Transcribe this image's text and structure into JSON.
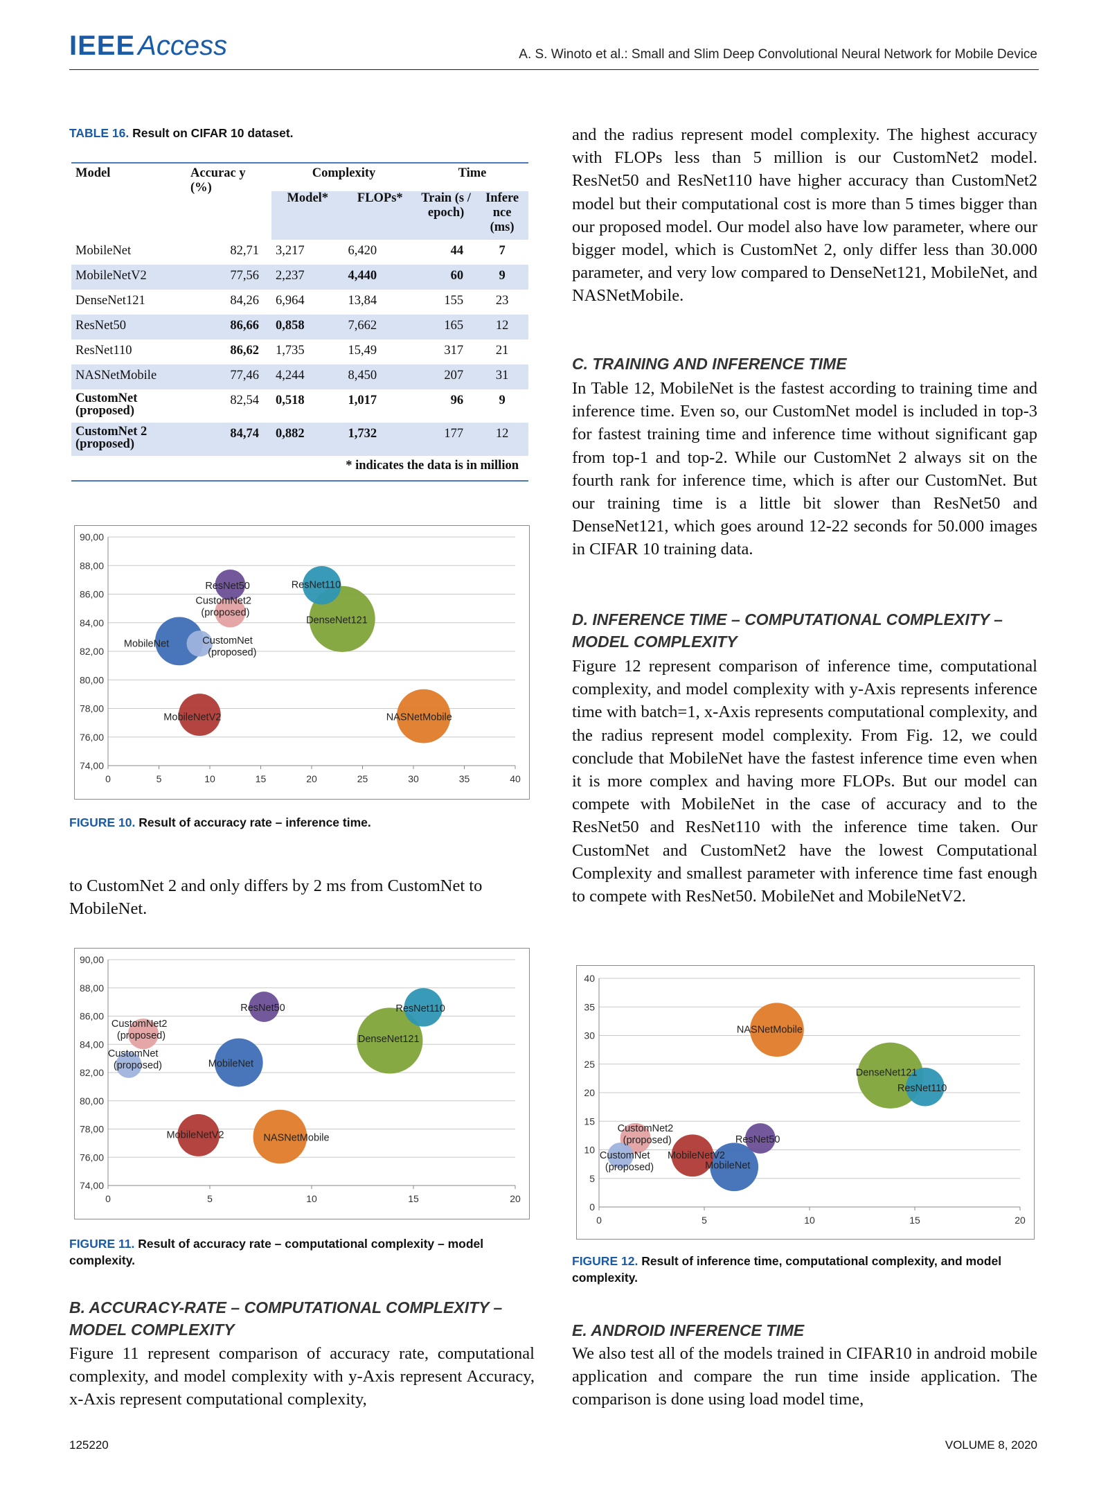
{
  "header": {
    "logo_ieee": "IEEE",
    "logo_access": "Access",
    "citation": "A. S. Winoto et al.: Small and Slim Deep Convolutional Neural Network for Mobile Device"
  },
  "table16": {
    "caption_label": "TABLE 16.",
    "caption_text": "Result on CIFAR 10 dataset.",
    "headers": {
      "model": "Model",
      "accuracy": "Accurac y (%)",
      "complexity": "Complexity",
      "time": "Time",
      "model_params": "Model*",
      "flops": "FLOPs*",
      "train": "Train (s / epoch)",
      "inference": "Infere nce (ms)"
    },
    "rows": [
      {
        "model": "MobileNet",
        "acc": "82,71",
        "params": "3,217",
        "flops": "6,420",
        "train": "44",
        "inf": "7"
      },
      {
        "model": "MobileNetV2",
        "acc": "77,56",
        "params": "2,237",
        "flops": "4,440",
        "train": "60",
        "inf": "9"
      },
      {
        "model": "DenseNet121",
        "acc": "84,26",
        "params": "6,964",
        "flops": "13,84",
        "train": "155",
        "inf": "23"
      },
      {
        "model": "ResNet50",
        "acc": "86,66",
        "params": "0,858",
        "flops": "7,662",
        "train": "165",
        "inf": "12"
      },
      {
        "model": "ResNet110",
        "acc": "86,62",
        "params": "1,735",
        "flops": "15,49",
        "train": "317",
        "inf": "21"
      },
      {
        "model": "NASNetMobile",
        "acc": "77,46",
        "params": "4,244",
        "flops": "8,450",
        "train": "207",
        "inf": "31"
      },
      {
        "model": "CustomNet (proposed)",
        "acc": "82,54",
        "params": "0,518",
        "flops": "1,017",
        "train": "96",
        "inf": "9"
      },
      {
        "model": "CustomNet 2 (proposed)",
        "acc": "84,74",
        "params": "0,882",
        "flops": "1,732",
        "train": "177",
        "inf": "12"
      }
    ],
    "note": "* indicates the data is in million"
  },
  "figure10": {
    "caption_label": "FIGURE 10.",
    "caption_text": "Result of accuracy rate – inference time."
  },
  "figure11": {
    "caption_label": "FIGURE 11.",
    "caption_text": "Result of accuracy rate – computational complexity – model complexity."
  },
  "figure12": {
    "caption_label": "FIGURE 12.",
    "caption_text": "Result of inference time, computational complexity, and model complexity."
  },
  "left_text": {
    "para_continued": "to CustomNet 2 and only differs by 2 ms from CustomNet to MobileNet.",
    "section_b_heading": "B. ACCURACY-RATE – COMPUTATIONAL COMPLEXITY – MODEL COMPLEXITY",
    "section_b_para": "Figure 11 represent comparison of accuracy rate, computational complexity, and model complexity with y-Axis represent Accuracy, x-Axis represent computational complexity,"
  },
  "right_text": {
    "para_top": "and the radius represent model complexity. The highest accuracy with FLOPs less than 5 million is our CustomNet2 model. ResNet50 and ResNet110 have higher accuracy than CustomNet2 model but their computational cost is more than 5 times bigger than our proposed model. Our model also have low parameter, where our bigger model, which is CustomNet 2, only differ less than 30.000 parameter, and very low compared to DenseNet121, MobileNet, and NASNetMobile.",
    "section_c_heading": "C. TRAINING AND INFERENCE TIME",
    "section_c_para": "In Table 12, MobileNet is the fastest according to training time and inference time. Even so, our CustomNet model is included in top-3 for fastest training time and inference time without significant gap from top-1 and top-2. While our CustomNet 2 always sit on the fourth rank for inference time, which is after our CustomNet. But our training time is a little bit slower than ResNet50 and DenseNet121, which goes around 12-22 seconds for 50.000 images in CIFAR 10 training data.",
    "section_d_heading": "D. INFERENCE TIME – COMPUTATIONAL COMPLEXITY – MODEL COMPLEXITY",
    "section_d_para": "Figure 12 represent comparison of inference time, computational complexity, and model complexity with y-Axis represents inference time with batch=1, x-Axis represents computational complexity, and the radius represent model complexity. From Fig. 12, we could conclude that MobileNet have the fastest inference time even when it is more complex and having more FLOPs. But our model can compete with MobileNet in the case of accuracy and to the ResNet50 and ResNet110 with the inference time taken. Our CustomNet and CustomNet2 have the lowest Computational Complexity and smallest parameter with inference time fast enough to compete with ResNet50. MobileNet and MobileNetV2.",
    "section_e_heading": "E. ANDROID INFERENCE TIME",
    "section_e_para": "We also test all of the models trained in CIFAR10 in android mobile application and compare the run time inside application. The comparison is done using load model time,"
  },
  "footer": {
    "page_number": "125220",
    "volume": "VOLUME 8, 2020"
  },
  "chart_data": [
    {
      "type": "scatter",
      "id": "figure10",
      "title": "",
      "xlabel": "",
      "ylabel": "",
      "xlim": [
        0,
        40
      ],
      "ylim": [
        74,
        90
      ],
      "xticks": [
        "0",
        "5",
        "10",
        "15",
        "20",
        "25",
        "30",
        "35",
        "40"
      ],
      "yticks": [
        "74,00",
        "76,00",
        "78,00",
        "80,00",
        "82,00",
        "84,00",
        "86,00",
        "88,00",
        "90,00"
      ],
      "grid": true,
      "points": [
        {
          "label": "MobileNet",
          "x": 7,
          "y": 82.71,
          "size": 3.217,
          "color": "#3f6fb6"
        },
        {
          "label": "MobileNetV2",
          "x": 9,
          "y": 77.56,
          "size": 2.237,
          "color": "#b03a35"
        },
        {
          "label": "DenseNet121",
          "x": 23,
          "y": 84.26,
          "size": 6.964,
          "color": "#80a43a"
        },
        {
          "label": "ResNet50",
          "x": 12,
          "y": 86.66,
          "size": 0.858,
          "color": "#6b4f97"
        },
        {
          "label": "ResNet110",
          "x": 21,
          "y": 86.62,
          "size": 1.735,
          "color": "#2e96b4"
        },
        {
          "label": "NASNetMobile",
          "x": 31,
          "y": 77.46,
          "size": 4.244,
          "color": "#e07b2a"
        },
        {
          "label": "CustomNet (proposed)",
          "x": 9,
          "y": 82.54,
          "size": 0.518,
          "color": "#9fb3dd"
        },
        {
          "label": "CustomNet2 (proposed)",
          "x": 12,
          "y": 84.74,
          "size": 0.882,
          "color": "#e3a1a1"
        }
      ]
    },
    {
      "type": "scatter",
      "id": "figure11",
      "title": "",
      "xlabel": "",
      "ylabel": "",
      "xlim": [
        0,
        20
      ],
      "ylim": [
        74,
        90
      ],
      "xticks": [
        "0",
        "5",
        "10",
        "15",
        "20"
      ],
      "yticks": [
        "74,00",
        "76,00",
        "78,00",
        "80,00",
        "82,00",
        "84,00",
        "86,00",
        "88,00",
        "90,00"
      ],
      "grid": true,
      "points": [
        {
          "label": "MobileNet",
          "x": 6.42,
          "y": 82.71,
          "size": 3.217,
          "color": "#3f6fb6"
        },
        {
          "label": "MobileNetV2",
          "x": 4.44,
          "y": 77.56,
          "size": 2.237,
          "color": "#b03a35"
        },
        {
          "label": "DenseNet121",
          "x": 13.84,
          "y": 84.26,
          "size": 6.964,
          "color": "#80a43a"
        },
        {
          "label": "ResNet50",
          "x": 7.662,
          "y": 86.66,
          "size": 0.858,
          "color": "#6b4f97"
        },
        {
          "label": "ResNet110",
          "x": 15.49,
          "y": 86.62,
          "size": 1.735,
          "color": "#2e96b4"
        },
        {
          "label": "NASNetMobile",
          "x": 8.45,
          "y": 77.46,
          "size": 4.244,
          "color": "#e07b2a"
        },
        {
          "label": "CustomNet (proposed)",
          "x": 1.017,
          "y": 82.54,
          "size": 0.518,
          "color": "#9fb3dd"
        },
        {
          "label": "CustomNet2 (proposed)",
          "x": 1.732,
          "y": 84.74,
          "size": 0.882,
          "color": "#e3a1a1"
        }
      ]
    },
    {
      "type": "scatter",
      "id": "figure12",
      "title": "",
      "xlabel": "",
      "ylabel": "",
      "xlim": [
        0,
        20
      ],
      "ylim": [
        0,
        40
      ],
      "xticks": [
        "0",
        "5",
        "10",
        "15",
        "20"
      ],
      "yticks": [
        "0",
        "5",
        "10",
        "15",
        "20",
        "25",
        "30",
        "35",
        "40"
      ],
      "grid": true,
      "points": [
        {
          "label": "MobileNet",
          "x": 6.42,
          "y": 7,
          "size": 3.217,
          "color": "#3f6fb6"
        },
        {
          "label": "MobileNetV2",
          "x": 4.44,
          "y": 9,
          "size": 2.237,
          "color": "#b03a35"
        },
        {
          "label": "DenseNet121",
          "x": 13.84,
          "y": 23,
          "size": 6.964,
          "color": "#80a43a"
        },
        {
          "label": "ResNet50",
          "x": 7.662,
          "y": 12,
          "size": 0.858,
          "color": "#6b4f97"
        },
        {
          "label": "ResNet110",
          "x": 15.49,
          "y": 21,
          "size": 1.735,
          "color": "#2e96b4"
        },
        {
          "label": "NASNetMobile",
          "x": 8.45,
          "y": 31,
          "size": 4.244,
          "color": "#e07b2a"
        },
        {
          "label": "CustomNet (proposed)",
          "x": 1.017,
          "y": 9,
          "size": 0.518,
          "color": "#9fb3dd"
        },
        {
          "label": "CustomNet2 (proposed)",
          "x": 1.732,
          "y": 12,
          "size": 0.882,
          "color": "#e3a1a1"
        }
      ]
    }
  ]
}
